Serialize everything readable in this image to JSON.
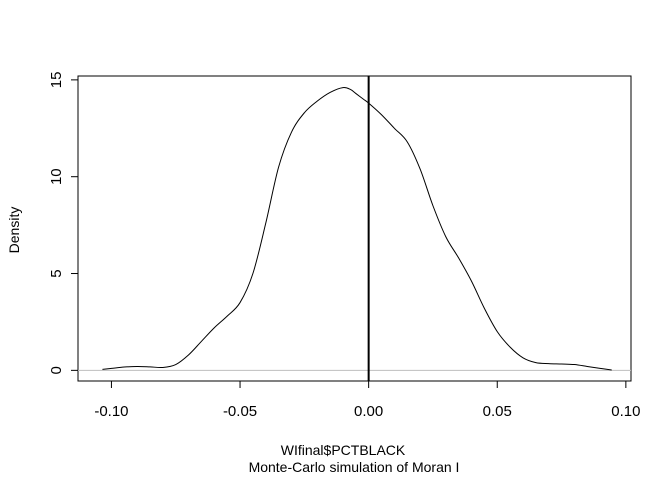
{
  "chart_data": {
    "type": "line",
    "title": "",
    "xlabel": "WIfinal$PCTBLACK",
    "sub": "Monte-Carlo simulation of Moran I",
    "ylabel": "Density",
    "xlim": [
      -0.113,
      0.102
    ],
    "ylim": [
      -0.55,
      15.2
    ],
    "x_ticks": [
      -0.1,
      -0.05,
      0.0,
      0.05,
      0.1
    ],
    "x_tick_labels": [
      "-0.10",
      "-0.05",
      "0.00",
      "0.05",
      "0.10"
    ],
    "y_ticks": [
      0,
      5,
      10,
      15
    ],
    "y_tick_labels": [
      "0",
      "5",
      "10",
      "15"
    ],
    "grid": false,
    "reference_line": {
      "x": 0.0,
      "color": "#000000"
    },
    "baseline": {
      "y": 0,
      "color": "#bebebe"
    },
    "series": [
      {
        "color": "#000000",
        "x": [
          -0.1035,
          -0.1,
          -0.095,
          -0.09,
          -0.085,
          -0.08,
          -0.075,
          -0.07,
          -0.065,
          -0.06,
          -0.055,
          -0.05,
          -0.045,
          -0.04,
          -0.035,
          -0.03,
          -0.025,
          -0.02,
          -0.015,
          -0.01,
          -0.007,
          -0.005,
          -0.002,
          0.0,
          0.005,
          0.01,
          0.015,
          0.02,
          0.025,
          0.03,
          0.035,
          0.04,
          0.045,
          0.05,
          0.055,
          0.06,
          0.065,
          0.07,
          0.075,
          0.08,
          0.085,
          0.09,
          0.0945
        ],
        "y": [
          0.05,
          0.1,
          0.17,
          0.2,
          0.18,
          0.15,
          0.3,
          0.8,
          1.5,
          2.2,
          2.8,
          3.5,
          5.0,
          7.6,
          10.5,
          12.3,
          13.3,
          13.9,
          14.35,
          14.6,
          14.5,
          14.3,
          14.0,
          13.8,
          13.2,
          12.5,
          11.8,
          10.4,
          8.5,
          6.9,
          5.8,
          4.6,
          3.2,
          2.0,
          1.2,
          0.65,
          0.4,
          0.35,
          0.33,
          0.3,
          0.2,
          0.1,
          0.02
        ]
      }
    ]
  }
}
